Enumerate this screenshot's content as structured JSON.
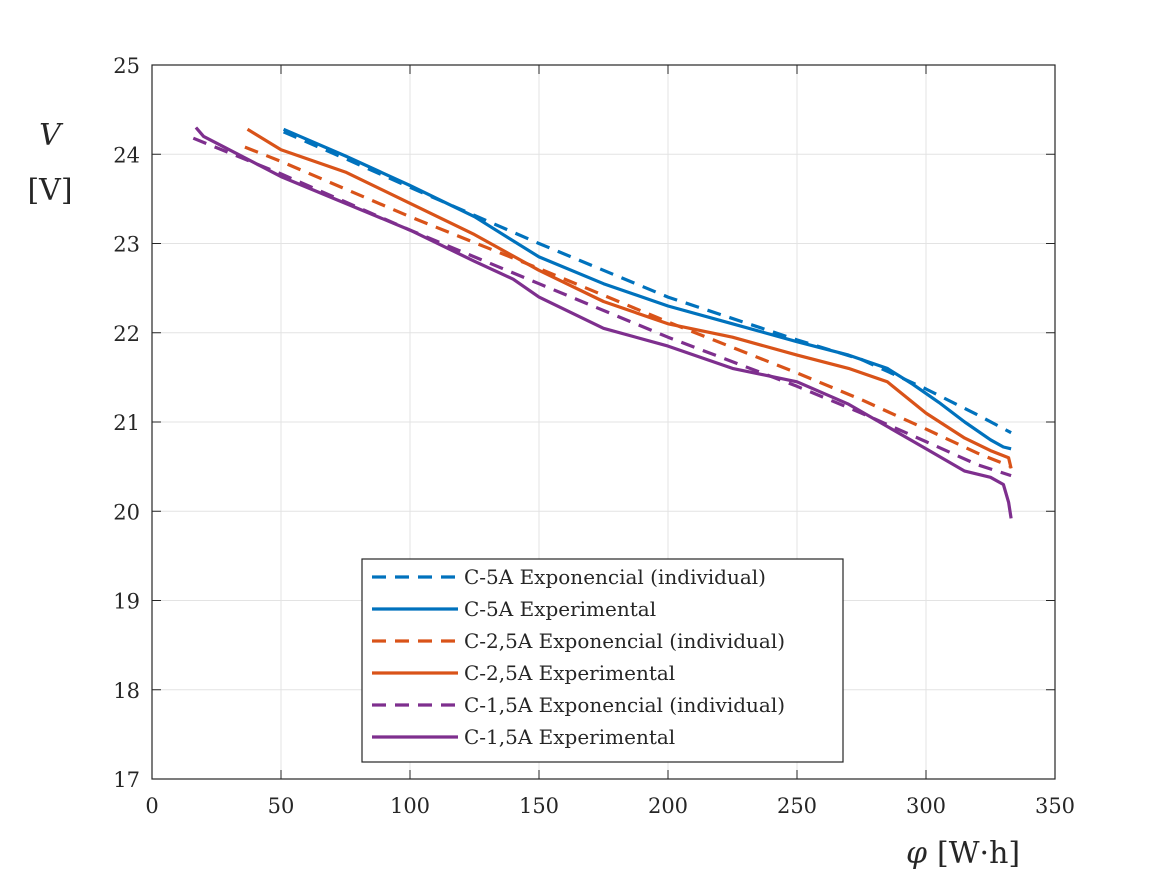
{
  "chart_data": {
    "type": "line",
    "xlabel_symbol": "φ",
    "xlabel_unit": "[W·h]",
    "ylabel_symbol": "V",
    "ylabel_unit": "[V]",
    "xlim": [
      0,
      350
    ],
    "ylim": [
      17,
      25
    ],
    "xticks": [
      0,
      50,
      100,
      150,
      200,
      250,
      300,
      350
    ],
    "yticks": [
      17,
      18,
      19,
      20,
      21,
      22,
      23,
      24,
      25
    ],
    "grid": true,
    "legend_position": "bottom-center",
    "series": [
      {
        "name": "C-5A Exponencial (individual)",
        "color": "#0072BD",
        "dash": "dashed",
        "x": [
          51,
          75,
          100,
          150,
          200,
          250,
          275,
          300,
          320,
          333
        ],
        "y": [
          24.25,
          23.95,
          23.63,
          23.0,
          22.4,
          21.92,
          21.7,
          21.37,
          21.08,
          20.88
        ]
      },
      {
        "name": "C-5A Experimental",
        "color": "#0072BD",
        "dash": "solid",
        "x": [
          51,
          75,
          100,
          125,
          150,
          175,
          200,
          225,
          250,
          270,
          285,
          295,
          305,
          315,
          325,
          330,
          333
        ],
        "y": [
          24.28,
          23.98,
          23.65,
          23.3,
          22.85,
          22.55,
          22.3,
          22.1,
          21.9,
          21.75,
          21.6,
          21.42,
          21.22,
          21.0,
          20.8,
          20.72,
          20.7
        ]
      },
      {
        "name": "C-2,5A Exponencial (individual)",
        "color": "#D95319",
        "dash": "dashed",
        "x": [
          36,
          50,
          100,
          150,
          200,
          250,
          275,
          300,
          320,
          333
        ],
        "y": [
          24.08,
          23.92,
          23.3,
          22.72,
          22.12,
          21.55,
          21.25,
          20.92,
          20.65,
          20.5
        ]
      },
      {
        "name": "C-2,5A Experimental",
        "color": "#D95319",
        "dash": "solid",
        "x": [
          37,
          50,
          75,
          100,
          125,
          150,
          175,
          200,
          225,
          250,
          270,
          285,
          300,
          315,
          325,
          332,
          333
        ],
        "y": [
          24.28,
          24.05,
          23.8,
          23.45,
          23.1,
          22.7,
          22.35,
          22.1,
          21.95,
          21.75,
          21.6,
          21.45,
          21.1,
          20.82,
          20.68,
          20.6,
          20.48
        ]
      },
      {
        "name": "C-1,5A Exponencial (individual)",
        "color": "#7E2F8E",
        "dash": "dashed",
        "x": [
          16,
          50,
          100,
          150,
          200,
          250,
          275,
          300,
          320,
          333
        ],
        "y": [
          24.18,
          23.78,
          23.15,
          22.55,
          21.95,
          21.4,
          21.1,
          20.78,
          20.52,
          20.4
        ]
      },
      {
        "name": "C-1,5A Experimental",
        "color": "#7E2F8E",
        "dash": "solid",
        "x": [
          17,
          20,
          50,
          100,
          125,
          140,
          150,
          175,
          200,
          225,
          250,
          270,
          285,
          300,
          315,
          325,
          330,
          332,
          333
        ],
        "y": [
          24.3,
          24.2,
          23.75,
          23.15,
          22.8,
          22.6,
          22.4,
          22.05,
          21.85,
          21.6,
          21.45,
          21.2,
          20.95,
          20.7,
          20.45,
          20.38,
          20.3,
          20.1,
          19.92
        ]
      }
    ]
  }
}
